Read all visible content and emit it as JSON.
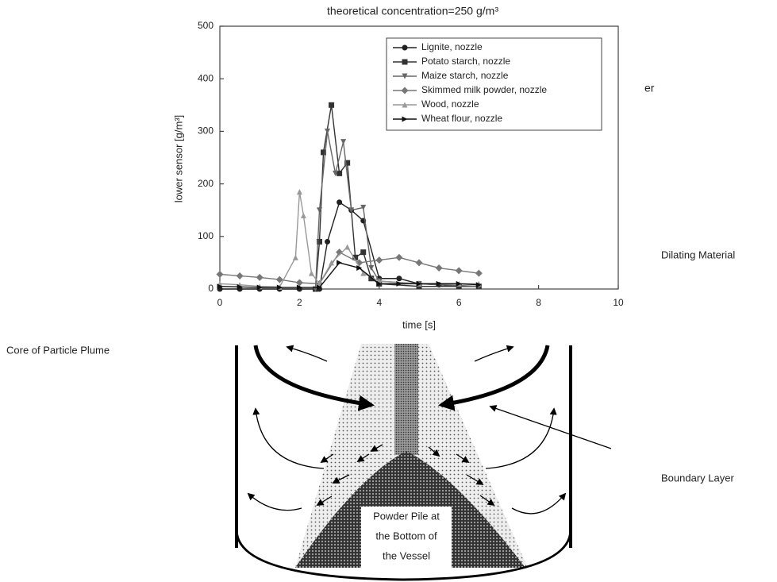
{
  "chart_data": {
    "type": "line",
    "title": "theoretical concentration=250 g/m³",
    "xlabel": "time [s]",
    "ylabel": "lower sensor [g/m³]",
    "xlim": [
      0,
      10
    ],
    "xticks": [
      0,
      2,
      4,
      6,
      8,
      10
    ],
    "ylim": [
      0,
      500
    ],
    "yticks": [
      0,
      100,
      200,
      300,
      400,
      500
    ],
    "legend": "upper right",
    "series": [
      {
        "name": "Lignite, nozzle",
        "color": "#222222",
        "marker": "circle",
        "x": [
          0,
          0.5,
          1,
          1.5,
          2,
          2.5,
          2.7,
          3,
          3.3,
          3.6,
          4,
          4.5,
          5,
          5.5,
          6,
          6.5
        ],
        "values": [
          0,
          0,
          0,
          0,
          0,
          0,
          90,
          165,
          150,
          130,
          20,
          20,
          10,
          8,
          5,
          5
        ]
      },
      {
        "name": "Potato starch, nozzle",
        "color": "#333333",
        "marker": "square",
        "x": [
          2.4,
          2.5,
          2.6,
          2.8,
          3.0,
          3.2,
          3.4,
          3.6,
          3.8,
          4,
          5,
          6,
          6.5
        ],
        "values": [
          0,
          90,
          260,
          350,
          220,
          240,
          60,
          70,
          20,
          10,
          5,
          5,
          5
        ]
      },
      {
        "name": "Maize starch, nozzle",
        "color": "#666666",
        "marker": "triangle-down",
        "x": [
          2.4,
          2.5,
          2.7,
          2.9,
          3.1,
          3.3,
          3.6,
          3.8,
          4,
          5,
          6.5
        ],
        "values": [
          0,
          150,
          300,
          220,
          280,
          150,
          155,
          40,
          15,
          10,
          5
        ]
      },
      {
        "name": "Skimmed milk powder, nozzle",
        "color": "#777777",
        "marker": "diamond",
        "x": [
          0,
          0.5,
          1,
          1.5,
          2,
          2.5,
          3,
          3.5,
          4,
          4.5,
          5,
          5.5,
          6,
          6.5
        ],
        "values": [
          28,
          25,
          22,
          18,
          12,
          10,
          70,
          50,
          55,
          60,
          50,
          40,
          35,
          30
        ]
      },
      {
        "name": "Wood, nozzle",
        "color": "#999999",
        "marker": "triangle-up",
        "x": [
          0,
          0.5,
          1,
          1.5,
          1.9,
          2.0,
          2.1,
          2.3,
          2.5,
          2.8,
          3.2,
          3.6,
          4,
          5,
          6,
          6.5
        ],
        "values": [
          10,
          8,
          5,
          4,
          60,
          185,
          140,
          30,
          10,
          50,
          80,
          30,
          15,
          10,
          10,
          10
        ]
      },
      {
        "name": "Wheat flour, nozzle",
        "color": "#111111",
        "marker": "triangle-right",
        "x": [
          0,
          0.5,
          1,
          1.5,
          2,
          2.5,
          3,
          3.5,
          4,
          4.5,
          5,
          5.5,
          6,
          6.5
        ],
        "values": [
          5,
          4,
          3,
          3,
          3,
          3,
          50,
          40,
          10,
          10,
          10,
          10,
          10,
          8
        ]
      }
    ]
  },
  "overlay_fragment": "er",
  "diagram": {
    "labels": {
      "dilating": "Dilating Material",
      "core": "Core of Particle Plume",
      "boundary": "Boundary Layer"
    },
    "pile": [
      "Powder Pile at",
      "the Bottom of",
      "the Vessel"
    ]
  }
}
